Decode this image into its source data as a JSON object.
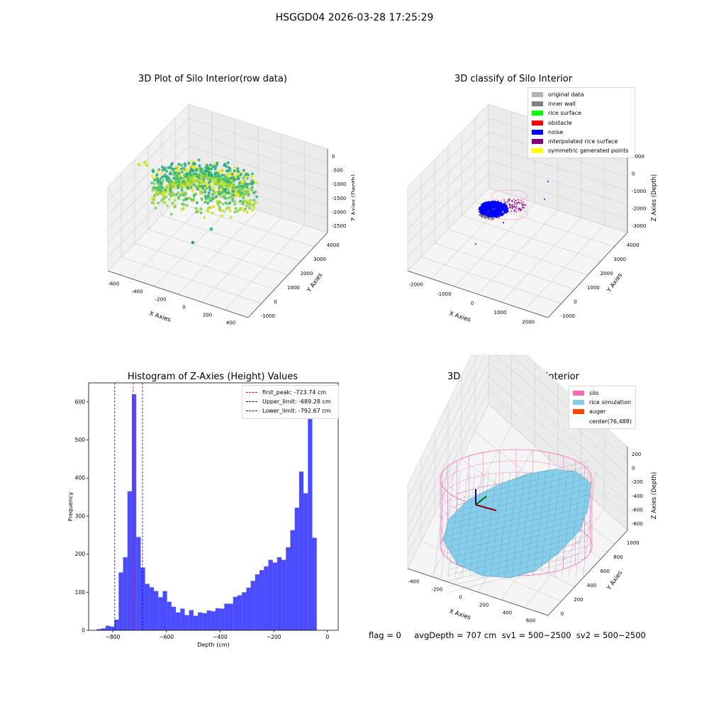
{
  "suptitle": "HSGGD04 2026-03-28 17:25:29",
  "panels": {
    "raw": {
      "title": "3D Plot of Silo Interior(row data)",
      "xlabel": "X Axies",
      "ylabel": "Y Axies",
      "zlabel": "Z Axies (Depth)",
      "xticks": [
        "-600",
        "-400",
        "-200",
        "0",
        "200",
        "400"
      ],
      "yticks": [
        "-1000",
        "0",
        "1000",
        "2000",
        "3000",
        "4000"
      ],
      "zticks": [
        "0",
        "-500",
        "-1000",
        "-1500",
        "-2000",
        "-2500"
      ]
    },
    "classify": {
      "title": "3D classify of Silo Interior",
      "xlabel": "X Axies",
      "ylabel": "Y Axies",
      "zlabel": "Z Axies (Depth)",
      "xticks": [
        "-2000",
        "-1000",
        "0",
        "1000",
        "2000"
      ],
      "yticks": [
        "-1000",
        "0",
        "1000",
        "2000",
        "3000",
        "4000"
      ],
      "zticks": [
        "1000",
        "0",
        "-1000",
        "-2000",
        "-3000"
      ],
      "legend": [
        {
          "label": "original data",
          "color": "#b3b3b3"
        },
        {
          "label": "inner wall",
          "color": "#808080"
        },
        {
          "label": "rice surface",
          "color": "#00ff00"
        },
        {
          "label": "obstacle",
          "color": "#ff0000"
        },
        {
          "label": "noise",
          "color": "#0000ff"
        },
        {
          "label": "interpolated rice surface",
          "color": "#800080"
        },
        {
          "label": "symmetric generated points",
          "color": "#ffff00"
        }
      ]
    },
    "simulation": {
      "title": "3D simulation of Silo Interior",
      "xlabel": "X Axies",
      "ylabel": "Y Axies",
      "zlabel": "Z Axies (Depth)",
      "xticks": [
        "-400",
        "-200",
        "0",
        "200",
        "400",
        "600"
      ],
      "yticks": [
        "0",
        "200",
        "400",
        "600",
        "800",
        "1000"
      ],
      "zticks": [
        "200",
        "0",
        "-200",
        "-400",
        "-600",
        "-800"
      ],
      "legend": [
        {
          "label": "silo",
          "color": "#ff69b4"
        },
        {
          "label": "rice simulation",
          "color": "#87ceeb"
        },
        {
          "label": "auger",
          "color": "#ff4500"
        },
        {
          "label": "center(76,488)",
          "color": ""
        }
      ]
    }
  },
  "bottom_text": "flag = 0     avgDepth = 707 cm  sv1 = 500~2500  sv2 = 500~2500",
  "chart_data": {
    "type": "bar",
    "title": "Histogram of Z-Axies (Height) Values",
    "xlabel": "Depth (cm)",
    "ylabel": "Frequency",
    "xlim": [
      -890,
      40
    ],
    "ylim": [
      0,
      650
    ],
    "xticks": [
      -800,
      -600,
      -400,
      -200,
      0
    ],
    "yticks": [
      0,
      100,
      200,
      300,
      400,
      500,
      600
    ],
    "bar_color": "#0000ff",
    "bar_start": -860,
    "bin_width": 16.4,
    "values": [
      3,
      5,
      12,
      10,
      28,
      152,
      192,
      365,
      620,
      245,
      165,
      122,
      113,
      103,
      87,
      103,
      75,
      62,
      47,
      57,
      40,
      53,
      38,
      47,
      45,
      52,
      50,
      58,
      57,
      70,
      70,
      88,
      92,
      100,
      112,
      130,
      147,
      158,
      168,
      185,
      178,
      192,
      185,
      218,
      263,
      322,
      417,
      360,
      560,
      243
    ],
    "vlines": [
      {
        "label": "first_peak: -723.74 cm",
        "x": -723.74,
        "color": "#ff0000"
      },
      {
        "label": "Upper_limit: -689.28 cm",
        "x": -689.28,
        "color": "#0000bb"
      },
      {
        "label": "Lower_limit: -792.67 cm",
        "x": -792.67,
        "color": "#0000bb"
      }
    ]
  }
}
